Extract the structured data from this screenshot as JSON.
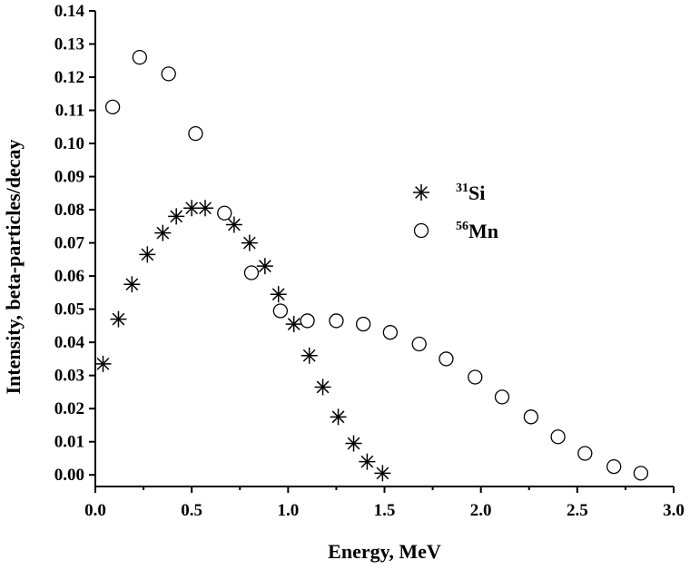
{
  "chart_data": {
    "type": "scatter",
    "title": "",
    "xlabel": "Energy, MeV",
    "ylabel": "Intensity, beta-particles/decay",
    "xlim": [
      0.0,
      3.0
    ],
    "ylim": [
      0.0,
      0.14
    ],
    "x_ticks": [
      "0.0",
      "0.5",
      "1.0",
      "1.5",
      "2.0",
      "2.5",
      "3.0"
    ],
    "y_ticks": [
      "0.00",
      "0.01",
      "0.02",
      "0.03",
      "0.04",
      "0.05",
      "0.06",
      "0.07",
      "0.08",
      "0.09",
      "0.10",
      "0.11",
      "0.12",
      "0.13",
      "0.14"
    ],
    "grid": false,
    "legend_position": "center-right",
    "series": [
      {
        "name": "Si",
        "isotope_mass": "31",
        "marker": "asterisk",
        "points": [
          [
            0.04,
            0.0335
          ],
          [
            0.12,
            0.047
          ],
          [
            0.19,
            0.0575
          ],
          [
            0.27,
            0.0665
          ],
          [
            0.35,
            0.073
          ],
          [
            0.42,
            0.078
          ],
          [
            0.5,
            0.0805
          ],
          [
            0.57,
            0.0805
          ],
          [
            0.72,
            0.0755
          ],
          [
            0.8,
            0.07
          ],
          [
            0.88,
            0.063
          ],
          [
            0.95,
            0.0545
          ],
          [
            1.03,
            0.0455
          ],
          [
            1.11,
            0.036
          ],
          [
            1.18,
            0.0265
          ],
          [
            1.26,
            0.0175
          ],
          [
            1.34,
            0.0095
          ],
          [
            1.41,
            0.004
          ],
          [
            1.49,
            0.0005
          ]
        ]
      },
      {
        "name": "Mn",
        "isotope_mass": "56",
        "marker": "circle",
        "points": [
          [
            0.09,
            0.111
          ],
          [
            0.23,
            0.126
          ],
          [
            0.38,
            0.121
          ],
          [
            0.52,
            0.103
          ],
          [
            0.67,
            0.079
          ],
          [
            0.81,
            0.061
          ],
          [
            0.96,
            0.0495
          ],
          [
            1.1,
            0.0465
          ],
          [
            1.25,
            0.0465
          ],
          [
            1.39,
            0.0455
          ],
          [
            1.53,
            0.043
          ],
          [
            1.68,
            0.0395
          ],
          [
            1.82,
            0.035
          ],
          [
            1.97,
            0.0295
          ],
          [
            2.11,
            0.0235
          ],
          [
            2.26,
            0.0175
          ],
          [
            2.4,
            0.0115
          ],
          [
            2.54,
            0.0065
          ],
          [
            2.69,
            0.0025
          ],
          [
            2.83,
            0.0005
          ]
        ]
      }
    ]
  }
}
